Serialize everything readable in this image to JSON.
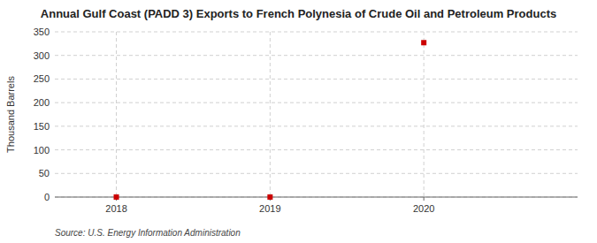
{
  "chart_data": {
    "type": "scatter",
    "title": "Annual Gulf Coast (PADD 3) Exports to French Polynesia of Crude Oil and Petroleum Products",
    "ylabel": "Thousand Barrels",
    "source": "Source: U.S. Energy Information Administration",
    "x": [
      2018,
      2019,
      2020
    ],
    "values": [
      0,
      0,
      327
    ],
    "color": "#cc0000",
    "marker": "square",
    "xlim": [
      2017.6,
      2021.0
    ],
    "xticks": [
      2018,
      2019,
      2020
    ],
    "ylim": [
      0,
      350
    ],
    "yticks": [
      0,
      50,
      100,
      150,
      200,
      250,
      300,
      350
    ],
    "grid": true
  }
}
